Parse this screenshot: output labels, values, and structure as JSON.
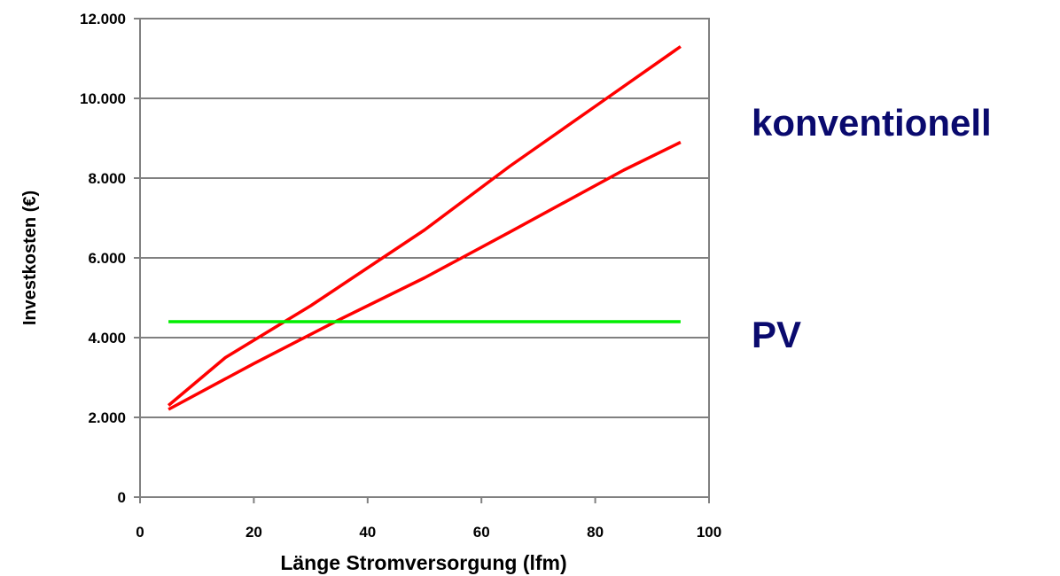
{
  "chart_data": {
    "type": "line",
    "xlabel": "Länge Stromversorgung (lfm)",
    "ylabel": "Investkosten (€)",
    "xlim": [
      0,
      100
    ],
    "ylim": [
      0,
      12000
    ],
    "x_ticks": [
      {
        "value": 0,
        "label": "0"
      },
      {
        "value": 20,
        "label": "20"
      },
      {
        "value": 40,
        "label": "40"
      },
      {
        "value": 60,
        "label": "60"
      },
      {
        "value": 80,
        "label": "80"
      },
      {
        "value": 100,
        "label": "100"
      }
    ],
    "y_ticks": [
      {
        "value": 0,
        "label": "0"
      },
      {
        "value": 2000,
        "label": "2.000"
      },
      {
        "value": 4000,
        "label": "4.000"
      },
      {
        "value": 6000,
        "label": "6.000"
      },
      {
        "value": 8000,
        "label": "8.000"
      },
      {
        "value": 10000,
        "label": "10.000"
      },
      {
        "value": 12000,
        "label": "12.000"
      }
    ],
    "grid": "horizontal",
    "series": [
      {
        "color": "#ff0000",
        "points": [
          [
            5,
            2300
          ],
          [
            15,
            3500
          ],
          [
            30,
            4800
          ],
          [
            50,
            6700
          ],
          [
            65,
            8300
          ],
          [
            80,
            9800
          ],
          [
            95,
            11300
          ]
        ]
      },
      {
        "color": "#ff0000",
        "points": [
          [
            5,
            2200
          ],
          [
            20,
            3350
          ],
          [
            35,
            4450
          ],
          [
            50,
            5500
          ],
          [
            65,
            6650
          ],
          [
            85,
            8200
          ],
          [
            95,
            8900
          ]
        ]
      },
      {
        "color": "#00ee00",
        "points": [
          [
            5,
            4400
          ],
          [
            95,
            4400
          ]
        ]
      }
    ],
    "annotations": [
      {
        "text": "konventionell",
        "color": "#0a0a6e"
      },
      {
        "text": "PV",
        "color": "#0a0a6e"
      }
    ]
  }
}
